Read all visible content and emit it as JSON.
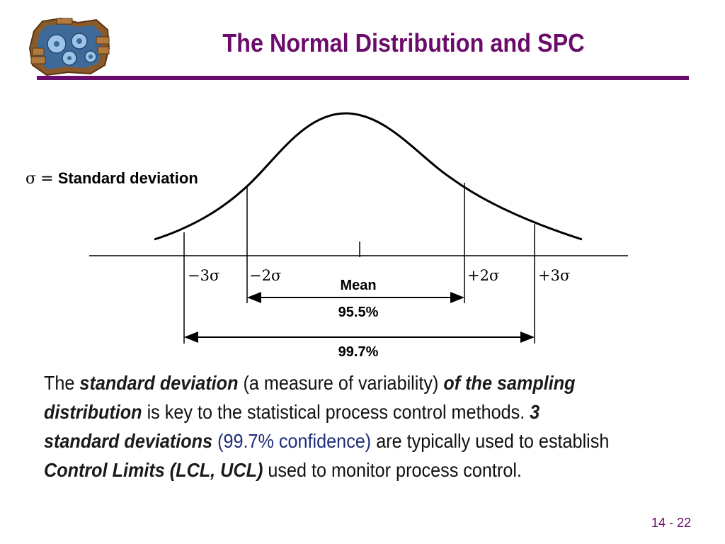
{
  "slide": {
    "title": "The Normal Distribution and SPC",
    "page_number": "14 - 22",
    "colors": {
      "title": "#6b0b6b",
      "rule": "#6b0b6b",
      "emphasis": "#1f2d7a"
    }
  },
  "diagram": {
    "sigma_symbol": "σ",
    "equals": "=",
    "sigma_definition": "Standard deviation",
    "labels": {
      "minus3": "−3σ",
      "minus2": "−2σ",
      "plus2": "+2σ",
      "plus3": "+3σ",
      "mean": "Mean",
      "pct_2sigma": "95.5%",
      "pct_3sigma": "99.7%"
    }
  },
  "body": {
    "s1": "The ",
    "s2": "standard deviation",
    "s3": " (a measure of variability) ",
    "s4": "of the sampling distribution",
    "s5": " is key to the statistical process control methods.  ",
    "s6": "3 standard deviations",
    "s7": " ",
    "s8": "(99.7% confidence)",
    "s9": " are typically used to establish ",
    "s10": "Control Limits (LCL, UCL)",
    "s11": " used to monitor process control."
  }
}
